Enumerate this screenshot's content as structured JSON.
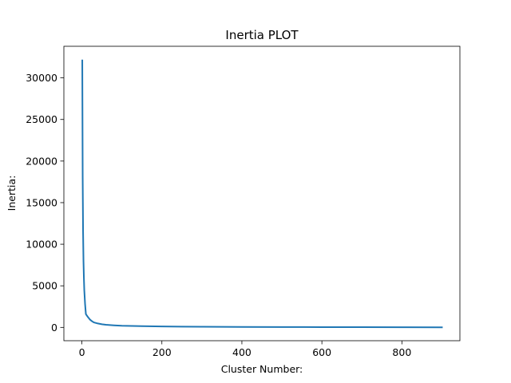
{
  "chart_data": {
    "type": "line",
    "title": "Inertia PLOT",
    "xlabel": "Cluster Number:",
    "ylabel": "Inertia:",
    "xlim": [
      -45,
      945
    ],
    "ylim": [
      -1600,
      33800
    ],
    "xticks": [
      0,
      200,
      400,
      600,
      800
    ],
    "yticks": [
      0,
      5000,
      10000,
      15000,
      20000,
      25000,
      30000
    ],
    "xtick_labels": [
      "0",
      "200",
      "400",
      "600",
      "800"
    ],
    "ytick_labels": [
      "0",
      "5000",
      "10000",
      "15000",
      "20000",
      "25000",
      "30000"
    ],
    "grid": false,
    "legend": "none",
    "series": [
      {
        "color": "#1f77b4",
        "x": [
          1,
          2,
          3,
          4,
          5,
          6,
          8,
          10,
          15,
          20,
          25,
          30,
          40,
          50,
          60,
          80,
          100,
          125,
          150,
          200,
          250,
          300,
          400,
          500,
          600,
          700,
          800,
          900
        ],
        "y": [
          32100,
          18000,
          11500,
          8000,
          6000,
          4500,
          2800,
          1600,
          1250,
          950,
          750,
          600,
          470,
          380,
          320,
          250,
          200,
          170,
          145,
          115,
          95,
          80,
          60,
          45,
          35,
          25,
          18,
          12
        ]
      }
    ]
  }
}
